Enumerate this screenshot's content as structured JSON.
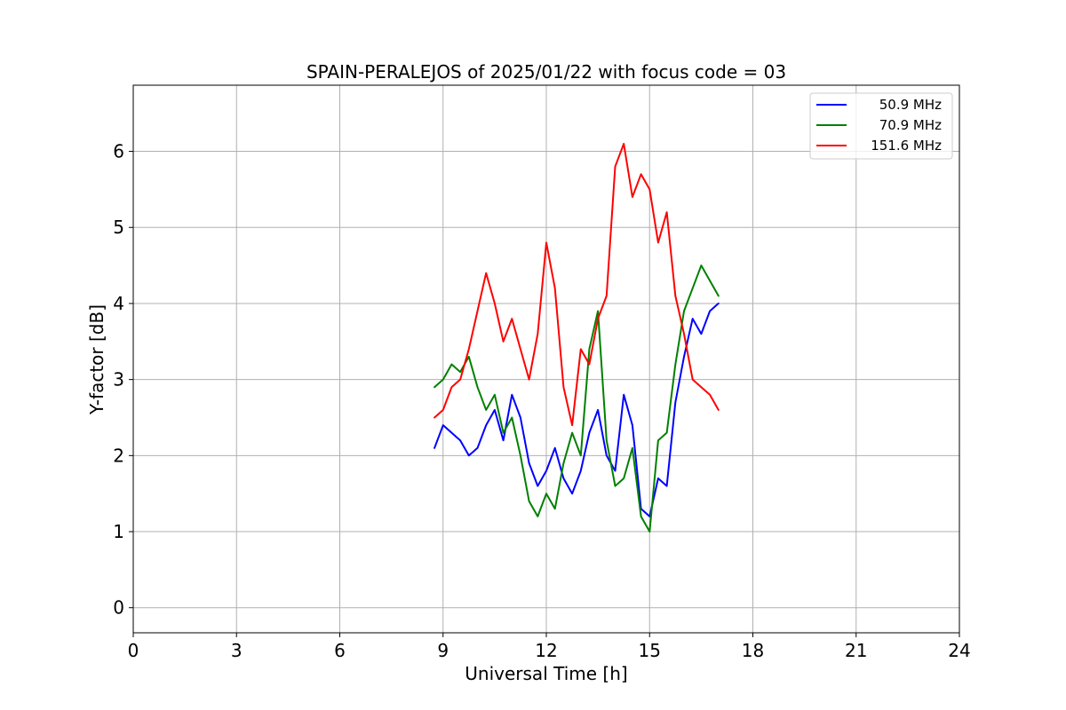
{
  "chart_data": {
    "type": "line",
    "title": "SPAIN-PERALEJOS of 2025/01/22 with focus code = 03",
    "xlabel": "Universal Time [h]",
    "ylabel": "Y-factor [dB]",
    "xlim": [
      0,
      24
    ],
    "ylim": [
      -0.33,
      6.87
    ],
    "xticks": [
      0,
      3,
      6,
      9,
      12,
      15,
      18,
      21,
      24
    ],
    "yticks": [
      0,
      1,
      2,
      3,
      4,
      5,
      6
    ],
    "grid": true,
    "legend_position": "top-right",
    "series": [
      {
        "name": "50.9 MHz",
        "color": "#0000ff",
        "x": [
          8.75,
          9.0,
          9.25,
          9.5,
          9.75,
          10.0,
          10.25,
          10.5,
          10.75,
          11.0,
          11.25,
          11.5,
          11.75,
          12.0,
          12.25,
          12.5,
          12.75,
          13.0,
          13.25,
          13.5,
          13.75,
          14.0,
          14.25,
          14.5,
          14.75,
          15.0,
          15.25,
          15.5,
          15.75,
          16.0,
          16.25,
          16.5,
          16.75,
          17.0
        ],
        "y": [
          2.1,
          2.4,
          2.3,
          2.2,
          2.0,
          2.1,
          2.4,
          2.6,
          2.2,
          2.8,
          2.5,
          1.9,
          1.6,
          1.8,
          2.1,
          1.7,
          1.5,
          1.8,
          2.3,
          2.6,
          2.0,
          1.8,
          2.8,
          2.4,
          1.3,
          1.2,
          1.7,
          1.6,
          2.7,
          3.3,
          3.8,
          3.6,
          3.9,
          4.0
        ]
      },
      {
        "name": "70.9 MHz",
        "color": "#008000",
        "x": [
          8.75,
          9.0,
          9.25,
          9.5,
          9.75,
          10.0,
          10.25,
          10.5,
          10.75,
          11.0,
          11.25,
          11.5,
          11.75,
          12.0,
          12.25,
          12.5,
          12.75,
          13.0,
          13.25,
          13.5,
          13.75,
          14.0,
          14.25,
          14.5,
          14.75,
          15.0,
          15.25,
          15.5,
          15.75,
          16.0,
          16.25,
          16.5,
          16.75,
          17.0
        ],
        "y": [
          2.9,
          3.0,
          3.2,
          3.1,
          3.3,
          2.9,
          2.6,
          2.8,
          2.3,
          2.5,
          2.0,
          1.4,
          1.2,
          1.5,
          1.3,
          1.9,
          2.3,
          2.0,
          3.4,
          3.9,
          2.2,
          1.6,
          1.7,
          2.1,
          1.2,
          1.0,
          2.2,
          2.3,
          3.2,
          3.9,
          4.2,
          4.5,
          4.3,
          4.1
        ]
      },
      {
        "name": "151.6 MHz",
        "color": "#ff0000",
        "x": [
          8.75,
          9.0,
          9.25,
          9.5,
          9.75,
          10.0,
          10.25,
          10.5,
          10.75,
          11.0,
          11.25,
          11.5,
          11.75,
          12.0,
          12.25,
          12.5,
          12.75,
          13.0,
          13.25,
          13.5,
          13.75,
          14.0,
          14.25,
          14.5,
          14.75,
          15.0,
          15.25,
          15.5,
          15.75,
          16.0,
          16.25,
          16.5,
          16.75,
          17.0
        ],
        "y": [
          2.5,
          2.6,
          2.9,
          3.0,
          3.4,
          3.9,
          4.4,
          4.0,
          3.5,
          3.8,
          3.4,
          3.0,
          3.6,
          4.8,
          4.2,
          2.9,
          2.4,
          3.4,
          3.2,
          3.8,
          4.1,
          5.8,
          6.1,
          5.4,
          5.7,
          5.5,
          4.8,
          5.2,
          4.1,
          3.6,
          3.0,
          2.9,
          2.8,
          2.6
        ]
      }
    ]
  }
}
